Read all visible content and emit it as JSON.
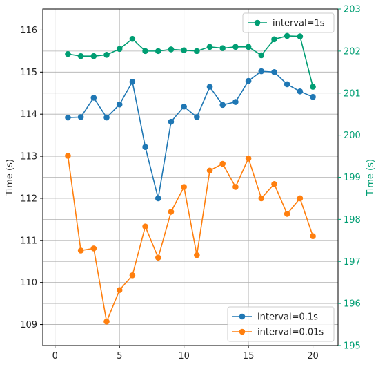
{
  "chart_data": {
    "type": "line",
    "title": "",
    "xlabel": "",
    "ylabel_left": "Time (s)",
    "ylabel_right": "Time (s)",
    "xlim": [
      -0.95,
      21.95
    ],
    "ylim_left": [
      108.5,
      116.5
    ],
    "ylim_right": [
      195,
      203
    ],
    "x_ticks": [
      0,
      5,
      10,
      15,
      20
    ],
    "y_ticks_left": [
      109,
      110,
      111,
      112,
      113,
      114,
      115,
      116
    ],
    "y_ticks_right": [
      195,
      196,
      197,
      198,
      199,
      200,
      201,
      202,
      203
    ],
    "grid": true,
    "colors": {
      "blue": "#1f77b4",
      "orange": "#ff7f0e",
      "green": "#009e73",
      "right_axis": "#009e73",
      "grid": "#b0b0b0"
    },
    "legend_left": {
      "placement": "lower-right"
    },
    "legend_right": {
      "placement": "upper-right"
    },
    "x": [
      1,
      2,
      3,
      4,
      5,
      6,
      7,
      8,
      9,
      10,
      11,
      12,
      13,
      14,
      15,
      16,
      17,
      18,
      19,
      20
    ],
    "series": [
      {
        "name": "interval=0.1s",
        "axis": "left",
        "color": "#1f77b4",
        "values": [
          113.92,
          113.93,
          114.39,
          113.92,
          114.23,
          114.77,
          113.22,
          112.0,
          113.82,
          114.18,
          113.93,
          114.65,
          114.22,
          114.29,
          114.79,
          115.02,
          115.0,
          114.71,
          114.54,
          114.41
        ]
      },
      {
        "name": "interval=0.01s",
        "axis": "left",
        "color": "#ff7f0e",
        "values": [
          113.01,
          110.76,
          110.81,
          109.07,
          109.82,
          110.17,
          111.33,
          110.59,
          111.68,
          112.27,
          110.65,
          112.66,
          112.82,
          112.27,
          112.95,
          112.0,
          112.34,
          111.63,
          112.0,
          111.1
        ]
      },
      {
        "name": "interval=1s",
        "axis": "right",
        "color": "#009e73",
        "values": [
          201.93,
          201.88,
          201.88,
          201.91,
          202.05,
          202.29,
          202.0,
          202.0,
          202.04,
          202.02,
          202.0,
          202.1,
          202.07,
          202.1,
          202.1,
          201.9,
          202.28,
          202.36,
          202.35,
          201.15
        ]
      }
    ]
  }
}
